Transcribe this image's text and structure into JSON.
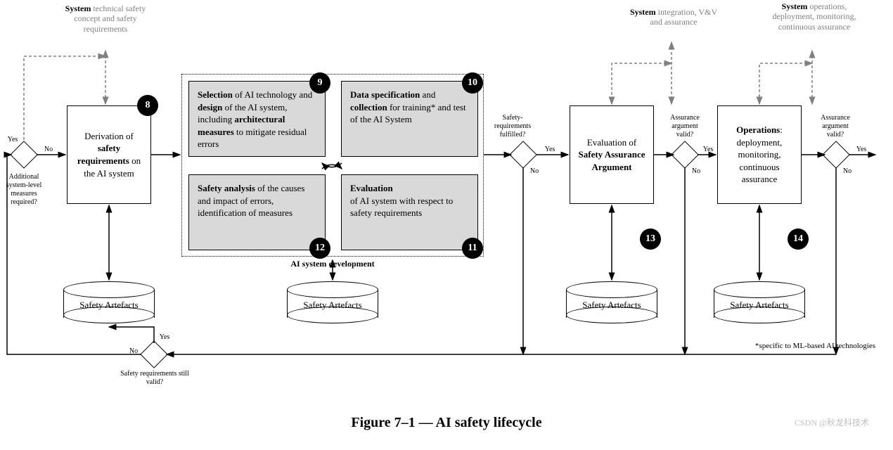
{
  "title": "Figure 7–1 — AI safety lifecycle",
  "watermark": "CSDN @秋龙科技术",
  "footnote": "*specific to ML-based AI technologies",
  "headers": {
    "h1": {
      "bold": "System",
      "rest": " technical safety concept and safety requirements"
    },
    "h2": {
      "bold": "System",
      "rest": " integration, V&V and assurance"
    },
    "h3": {
      "bold": "System",
      "rest": " operations, deployment, monitoring, continuous assurance"
    }
  },
  "boxes": {
    "n8": {
      "num": "8",
      "html": "Derivation of <span class='b'>safety requirements</span> on the AI system"
    },
    "n9": {
      "num": "9",
      "html": "<span class='b'>Selection</span> of AI technology and <span class='b'>design</span> of the AI system, including <span class='b'>architectural measures</span> to mitigate residual errors"
    },
    "n10": {
      "num": "10",
      "html": "<span class='b'>Data specification</span> and <span class='b'>collection</span> for training* and test of the AI System"
    },
    "n11": {
      "num": "11",
      "html": "<span class='b'>Evaluation</span><br>of AI system with respect to safety requirements"
    },
    "n12": {
      "num": "12",
      "html": "<span class='b'>Safety analysis</span> of the causes and impact of errors, identification of measures"
    },
    "n13": {
      "num": "13",
      "html": "Evaluation of <span class='b'>Safety Assurance Argument</span>"
    },
    "n14": {
      "num": "14",
      "html": "<span class='b'>Operations</span>: deployment, monitoring, continuous assurance"
    }
  },
  "container_label": "AI system development",
  "cylinders": {
    "c1": "Safety Artefacts",
    "c2": "Safety Artefacts",
    "c3": "Safety Artefacts",
    "c4": "Safety Artefacts"
  },
  "decisions": {
    "d1": {
      "q": "Additional system-level measures required?",
      "yes": "Yes",
      "no": "No"
    },
    "d2": {
      "q": "Safety-requirements fulfilled?",
      "yes": "Yes",
      "no": "No"
    },
    "d3": {
      "q": "Assurance argument valid?",
      "yes": "Yes",
      "no": "No"
    },
    "d4": {
      "q": "Assurance argument valid?",
      "yes": "Yes",
      "no": "No"
    },
    "d5": {
      "q": "Safety requirements still valid?",
      "yes": "Yes",
      "no": "No"
    }
  },
  "colors": {
    "grey": "#808080",
    "boxgrey": "#d9d9d9"
  }
}
